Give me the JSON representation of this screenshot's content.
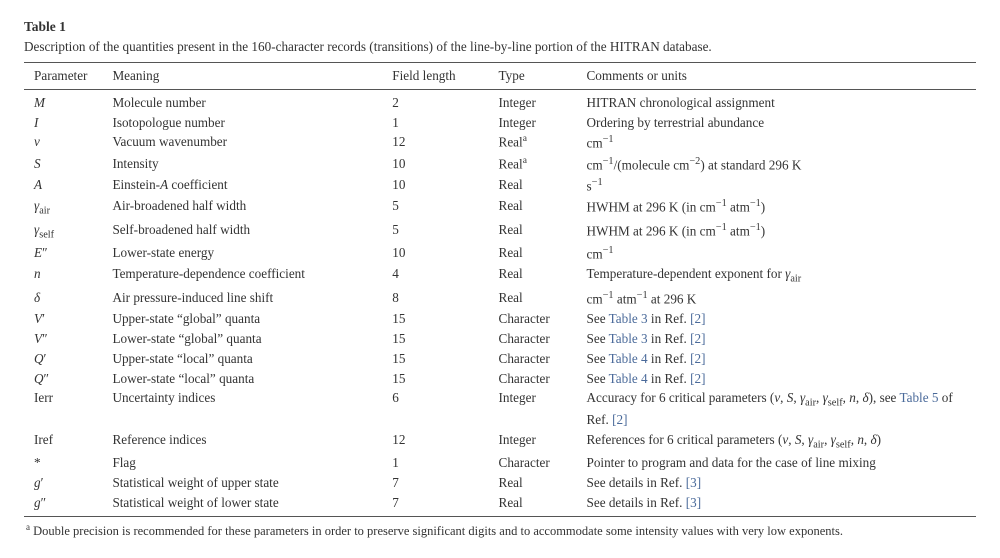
{
  "table": {
    "label": "Table 1",
    "caption": "Description of the quantities present in the 160-character records (transitions) of the line-by-line portion of the HITRAN database.",
    "columns": [
      "Parameter",
      "Meaning",
      "Field length",
      "Type",
      "Comments or units"
    ],
    "rows": [
      {
        "param_html": "M",
        "meaning_html": "Molecule number",
        "len": "2",
        "type_html": "Integer",
        "comment_html": "HITRAN chronological assignment"
      },
      {
        "param_html": "I",
        "meaning_html": "Isotopologue number",
        "len": "1",
        "type_html": "Integer",
        "comment_html": "Ordering by terrestrial abundance"
      },
      {
        "param_html": "ν",
        "meaning_html": "Vacuum wavenumber",
        "len": "12",
        "type_html": "Real<span class='supa'>a</span>",
        "comment_html": "cm<span class='sup'>−1</span>"
      },
      {
        "param_html": "S",
        "meaning_html": "Intensity",
        "len": "10",
        "type_html": "Real<span class='supa'>a</span>",
        "comment_html": "cm<span class='sup'>−1</span>/(molecule cm<span class='sup'>−2</span>) at standard 296 K"
      },
      {
        "param_html": "A",
        "meaning_html": "Einstein-<i>A</i> coefficient",
        "len": "10",
        "type_html": "Real",
        "comment_html": "s<span class='sup'>−1</span>"
      },
      {
        "param_html": "γ<span class='sub'>air</span>",
        "meaning_html": "Air-broadened half width",
        "len": "5",
        "type_html": "Real",
        "comment_html": "HWHM at 296 K (in cm<span class='sup'>−1</span> atm<span class='sup'>−1</span>)"
      },
      {
        "param_html": "γ<span class='sub'>self</span>",
        "meaning_html": "Self-broadened half width",
        "len": "5",
        "type_html": "Real",
        "comment_html": "HWHM at 296 K (in cm<span class='sup'>−1</span> atm<span class='sup'>−1</span>)"
      },
      {
        "param_html": "E<span class='roman'>″</span>",
        "meaning_html": "Lower-state energy",
        "len": "10",
        "type_html": "Real",
        "comment_html": "cm<span class='sup'>−1</span>"
      },
      {
        "param_html": "n",
        "meaning_html": "Temperature-dependence coefficient",
        "len": "4",
        "type_html": "Real",
        "comment_html": "Temperature-dependent exponent for <i>γ</i><span class='sub'>air</span>"
      },
      {
        "param_html": "δ",
        "meaning_html": "Air pressure-induced line shift",
        "len": "8",
        "type_html": "Real",
        "comment_html": "cm<span class='sup'>−1</span> atm<span class='sup'>−1</span> at 296 K"
      },
      {
        "param_html": "V<span class='roman'>′</span>",
        "meaning_html": "Upper-state “global” quanta",
        "len": "15",
        "type_html": "Character",
        "comment_html": "See <span class='reflink'>Table 3</span> in Ref. <span class='reflink'>[2]</span>"
      },
      {
        "param_html": "V<span class='roman'>″</span>",
        "meaning_html": "Lower-state “global” quanta",
        "len": "15",
        "type_html": "Character",
        "comment_html": "See <span class='reflink'>Table 3</span> in Ref. <span class='reflink'>[2]</span>"
      },
      {
        "param_html": "Q<span class='roman'>′</span>",
        "meaning_html": "Upper-state “local” quanta",
        "len": "15",
        "type_html": "Character",
        "comment_html": "See <span class='reflink'>Table 4</span> in Ref. <span class='reflink'>[2]</span>"
      },
      {
        "param_html": "Q<span class='roman'>″</span>",
        "meaning_html": "Lower-state “local” quanta",
        "len": "15",
        "type_html": "Character",
        "comment_html": "See <span class='reflink'>Table 4</span> in Ref. <span class='reflink'>[2]</span>"
      },
      {
        "param_html": "<span class='roman'>Ierr</span>",
        "meaning_html": "Uncertainty indices",
        "len": "6",
        "type_html": "Integer",
        "comment_html": "Accuracy for 6 critical parameters (<i>ν</i>, <i>S</i>, <i>γ</i><span class='sub'>air</span>, <i>γ</i><span class='sub'>self</span>, <i>n</i>, <i>δ</i>), see <span class='reflink'>Table 5</span> of Ref. <span class='reflink'>[2]</span>"
      },
      {
        "param_html": "<span class='roman'>Iref</span>",
        "meaning_html": "Reference indices",
        "len": "12",
        "type_html": "Integer",
        "comment_html": "References for 6 critical parameters (<i>ν</i>, <i>S</i>, <i>γ</i><span class='sub'>air</span>, <i>γ</i><span class='sub'>self</span>, <i>n</i>, <i>δ</i>)"
      },
      {
        "param_html": "<span class='roman'>*</span>",
        "meaning_html": "Flag",
        "len": "1",
        "type_html": "Character",
        "comment_html": "Pointer to program and data for the case of line mixing"
      },
      {
        "param_html": "g<span class='roman'>′</span>",
        "meaning_html": "Statistical weight of upper state",
        "len": "7",
        "type_html": "Real",
        "comment_html": "See details in Ref. <span class='reflink'>[3]</span>"
      },
      {
        "param_html": "g<span class='roman'>″</span>",
        "meaning_html": "Statistical weight of lower state",
        "len": "7",
        "type_html": "Real",
        "comment_html": "See details in Ref. <span class='reflink'>[3]</span>"
      }
    ],
    "footnote_marker": "a",
    "footnote_text": "Double precision is recommended for these parameters in order to preserve significant digits and to accommodate some intensity values with very low exponents."
  }
}
